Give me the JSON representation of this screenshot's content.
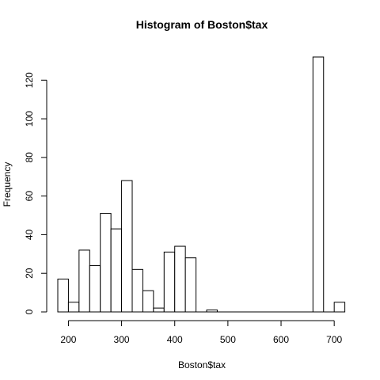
{
  "chart_data": {
    "type": "bar",
    "title": "Histogram of Boston$tax",
    "xlabel": "Boston$tax",
    "ylabel": "Frequency",
    "bin_width": 20,
    "bins": [
      {
        "start": 180,
        "end": 200,
        "count": 17
      },
      {
        "start": 200,
        "end": 220,
        "count": 5
      },
      {
        "start": 220,
        "end": 240,
        "count": 32
      },
      {
        "start": 240,
        "end": 260,
        "count": 24
      },
      {
        "start": 260,
        "end": 280,
        "count": 51
      },
      {
        "start": 280,
        "end": 300,
        "count": 43
      },
      {
        "start": 300,
        "end": 320,
        "count": 68
      },
      {
        "start": 320,
        "end": 340,
        "count": 22
      },
      {
        "start": 340,
        "end": 360,
        "count": 11
      },
      {
        "start": 360,
        "end": 380,
        "count": 2
      },
      {
        "start": 380,
        "end": 400,
        "count": 31
      },
      {
        "start": 400,
        "end": 420,
        "count": 34
      },
      {
        "start": 420,
        "end": 440,
        "count": 28
      },
      {
        "start": 440,
        "end": 460,
        "count": 0
      },
      {
        "start": 460,
        "end": 480,
        "count": 1
      },
      {
        "start": 480,
        "end": 500,
        "count": 0
      },
      {
        "start": 500,
        "end": 520,
        "count": 0
      },
      {
        "start": 520,
        "end": 540,
        "count": 0
      },
      {
        "start": 540,
        "end": 560,
        "count": 0
      },
      {
        "start": 560,
        "end": 580,
        "count": 0
      },
      {
        "start": 580,
        "end": 600,
        "count": 0
      },
      {
        "start": 600,
        "end": 620,
        "count": 0
      },
      {
        "start": 620,
        "end": 640,
        "count": 0
      },
      {
        "start": 640,
        "end": 660,
        "count": 0
      },
      {
        "start": 660,
        "end": 680,
        "count": 132
      },
      {
        "start": 680,
        "end": 700,
        "count": 0
      },
      {
        "start": 700,
        "end": 720,
        "count": 5
      }
    ],
    "xlim": [
      180,
      720
    ],
    "ylim": [
      0,
      132
    ],
    "x_ticks": [
      200,
      300,
      400,
      500,
      600,
      700
    ],
    "x_tick_labels": [
      "200",
      "300",
      "400",
      "500",
      "600",
      "700"
    ],
    "y_ticks": [
      0,
      20,
      40,
      60,
      80,
      100,
      120
    ],
    "y_tick_labels": [
      "0",
      "20",
      "40",
      "60",
      "80",
      "100",
      "120"
    ],
    "grid": false,
    "legend": "none"
  }
}
